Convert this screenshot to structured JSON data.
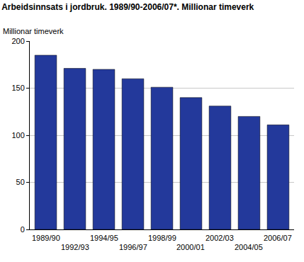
{
  "chart_data": {
    "type": "bar",
    "title": "Arbeidsinnsats i jordbruk. 1989/90-2006/07*. Millionar timeverk",
    "y_label": "Millionar timeverk",
    "categories": [
      "1989/90",
      "1992/93",
      "1994/95",
      "1996/97",
      "1998/99",
      "2000/01",
      "2002/03",
      "2004/05",
      "2006/07"
    ],
    "values": [
      185,
      171,
      170,
      160,
      151,
      140,
      131,
      120,
      111
    ],
    "color": "#23399b",
    "ylim": [
      0,
      200
    ],
    "yticks": [
      0,
      50,
      100,
      150,
      200
    ],
    "grid": true
  }
}
